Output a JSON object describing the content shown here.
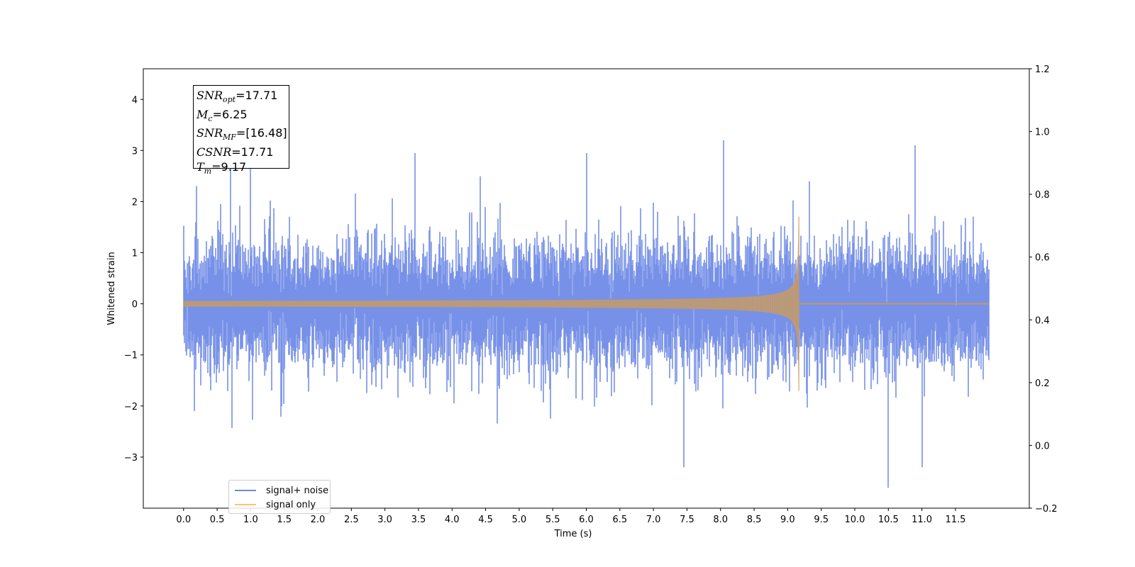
{
  "chart_data": {
    "type": "line",
    "xlabel": "Time (s)",
    "ylabel": "Whitened strain",
    "xlim": [
      -0.6,
      12.6
    ],
    "ylim_left": [
      -4.0,
      4.6
    ],
    "ylim_right": [
      -0.2,
      1.2
    ],
    "x_ticks": [
      "0.0",
      "0.5",
      "1.0",
      "1.5",
      "2.0",
      "2.5",
      "3.0",
      "3.5",
      "4.0",
      "4.5",
      "5.0",
      "5.5",
      "6.0",
      "6.5",
      "7.0",
      "7.5",
      "8.0",
      "8.5",
      "9.0",
      "9.5",
      "10.0",
      "10.5",
      "11.0",
      "11.5"
    ],
    "y_ticks_left": [
      -3,
      -2,
      -1,
      0,
      1,
      2,
      3,
      4
    ],
    "y_ticks_left_labels": [
      "−3",
      "−2",
      "−1",
      "0",
      "1",
      "2",
      "3",
      "4"
    ],
    "y_ticks_right": [
      -0.2,
      0.0,
      0.2,
      0.4,
      0.6,
      0.8,
      1.0,
      1.2
    ],
    "y_ticks_right_labels": [
      "−0.2",
      "0.0",
      "0.2",
      "0.4",
      "0.6",
      "0.8",
      "1.0",
      "1.2"
    ],
    "series": [
      {
        "name": "signal+ noise",
        "color": "#6b88e6",
        "description_values": {
          "x_range": [
            0.0,
            12.0
          ],
          "typical_amplitude_envelope": [
            -1.6,
            1.6
          ],
          "peak_max": 3.2,
          "peak_min": -3.6
        }
      },
      {
        "name": "signal only",
        "color": "#ffc36b",
        "chirp": {
          "x_start": 0.0,
          "x_merger": 9.17,
          "amplitude_start": 0.05,
          "amplitude_merger": 1.7,
          "post_merger_value": 0.0,
          "x_end": 12.0
        }
      }
    ],
    "legend": {
      "placement": "lower-left",
      "entries": [
        "signal+ noise",
        "signal only"
      ]
    },
    "annotation": {
      "lines": [
        {
          "symbol": "SNR",
          "subscript": "opt",
          "value": "=17.71"
        },
        {
          "symbol": "M",
          "subscript": "c",
          "value": "=6.25"
        },
        {
          "symbol": "SNR",
          "subscript": "MF",
          "value": "=[16.48]"
        },
        {
          "symbol": "CSNR",
          "subscript": "",
          "value": "=17.71"
        },
        {
          "symbol": "T",
          "subscript": "m",
          "value": "=9.17"
        }
      ]
    }
  }
}
